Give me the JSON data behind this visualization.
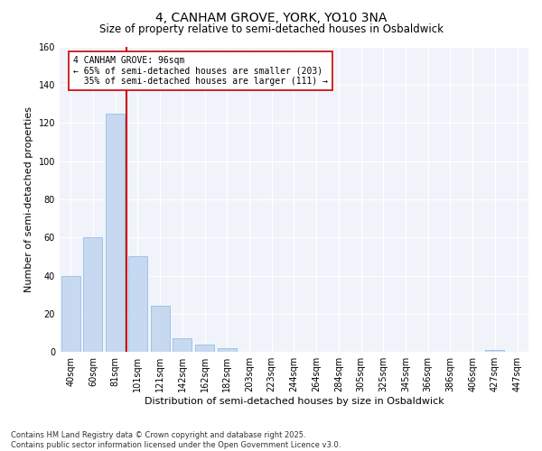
{
  "title": "4, CANHAM GROVE, YORK, YO10 3NA",
  "subtitle": "Size of property relative to semi-detached houses in Osbaldwick",
  "xlabel": "Distribution of semi-detached houses by size in Osbaldwick",
  "ylabel": "Number of semi-detached properties",
  "categories": [
    "40sqm",
    "60sqm",
    "81sqm",
    "101sqm",
    "121sqm",
    "142sqm",
    "162sqm",
    "182sqm",
    "203sqm",
    "223sqm",
    "244sqm",
    "264sqm",
    "284sqm",
    "305sqm",
    "325sqm",
    "345sqm",
    "366sqm",
    "386sqm",
    "406sqm",
    "427sqm",
    "447sqm"
  ],
  "values": [
    40,
    60,
    125,
    50,
    24,
    7,
    4,
    2,
    0,
    0,
    0,
    0,
    0,
    0,
    0,
    0,
    0,
    0,
    0,
    1,
    0
  ],
  "vline_bin_index": 3,
  "annotation_text_line1": "4 CANHAM GROVE: 96sqm",
  "annotation_text_line2": "← 65% of semi-detached houses are smaller (203)",
  "annotation_text_line3": "  35% of semi-detached houses are larger (111) →",
  "bar_color_normal": "#c6d9f1",
  "bar_color_edge": "#8db4e2",
  "vline_color": "#cc0000",
  "annotation_box_edge": "#cc0000",
  "annotation_box_face": "#ffffff",
  "ylim": [
    0,
    160
  ],
  "yticks": [
    0,
    20,
    40,
    60,
    80,
    100,
    120,
    140,
    160
  ],
  "footer_line1": "Contains HM Land Registry data © Crown copyright and database right 2025.",
  "footer_line2": "Contains public sector information licensed under the Open Government Licence v3.0.",
  "title_fontsize": 10,
  "subtitle_fontsize": 8.5,
  "axis_label_fontsize": 8,
  "tick_fontsize": 7,
  "annotation_fontsize": 7,
  "footer_fontsize": 6
}
